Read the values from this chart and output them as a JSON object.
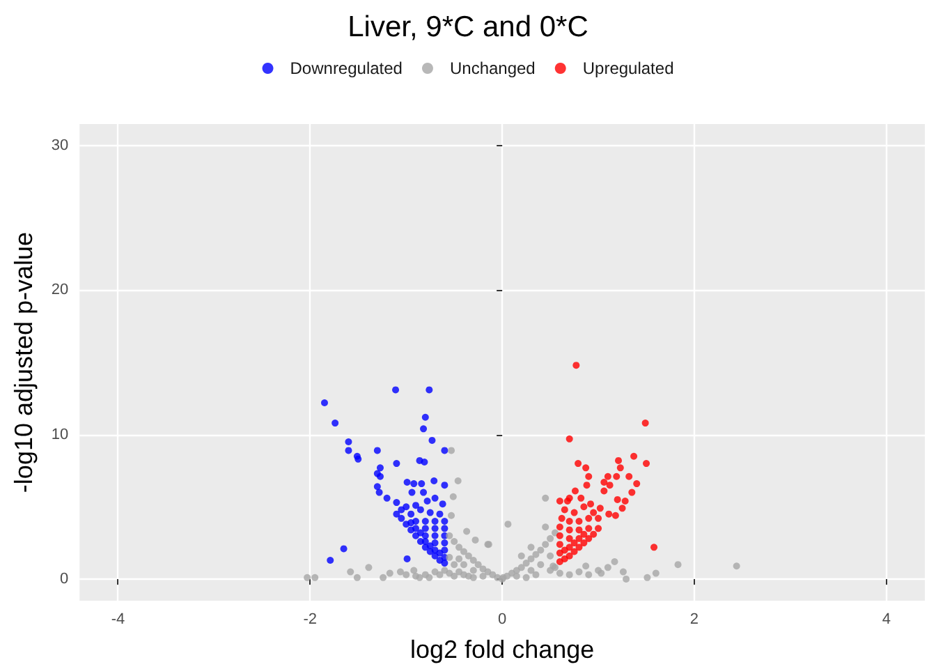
{
  "chart_data": {
    "type": "scatter",
    "title": "Liver, 9*C and 0*C",
    "xlabel": "log2 fold change",
    "ylabel": "-log10 adjusted p-value",
    "xlim": [
      -4.4,
      4.4
    ],
    "xticks": [
      -4,
      -2,
      0,
      2,
      4
    ],
    "ylim": [
      -1.5,
      31.5
    ],
    "yticks": [
      0,
      10,
      20,
      30
    ],
    "grid": true,
    "legend": "top",
    "marker": "circle",
    "series": [
      {
        "name": "Downregulated",
        "color": "#0000ff",
        "x": [
          -1.11,
          -0.76,
          -1.85,
          -1.74,
          -0.8,
          -0.82,
          -1.6,
          -1.6,
          -1.51,
          -1.5,
          -1.3,
          -0.73,
          -0.6,
          -1.1,
          -0.86,
          -0.81,
          -1.27,
          -1.3,
          -1.27,
          -1.3,
          -1.28,
          -1.2,
          -1.1,
          -0.99,
          -0.92,
          -0.84,
          -0.71,
          -0.6,
          -0.94,
          -0.82,
          -0.7,
          -1.1,
          -1.65,
          -1.79,
          -0.99,
          -1.05,
          -1.0,
          -0.95,
          -0.9,
          -0.85,
          -0.8,
          -0.75,
          -0.7,
          -0.65,
          -0.6,
          -0.6,
          -0.6,
          -0.6,
          -0.6,
          -0.6,
          -0.6,
          -0.65,
          -0.7,
          -0.7,
          -0.7,
          -0.7,
          -0.7,
          -0.75,
          -0.8,
          -0.8,
          -0.8,
          -0.8,
          -0.85,
          -0.9,
          -0.9,
          -0.95,
          -1.0,
          -0.65,
          -0.75,
          -0.85,
          -0.95,
          -1.05,
          -0.62,
          -0.78,
          -0.9
        ],
        "values": [
          13.1,
          13.1,
          12.2,
          10.8,
          11.2,
          10.4,
          9.5,
          8.9,
          8.5,
          8.3,
          8.9,
          9.6,
          8.9,
          8.0,
          8.2,
          8.1,
          7.7,
          7.3,
          7.1,
          6.4,
          6.0,
          5.6,
          5.3,
          6.7,
          6.6,
          6.6,
          6.8,
          6.5,
          6.0,
          6.0,
          5.6,
          4.5,
          2.1,
          1.3,
          1.4,
          4.2,
          3.8,
          3.4,
          3.0,
          2.6,
          2.2,
          1.9,
          1.6,
          1.3,
          1.1,
          1.5,
          2.0,
          2.5,
          3.0,
          3.5,
          4.0,
          4.5,
          2.0,
          2.5,
          3.0,
          3.5,
          4.0,
          4.6,
          2.6,
          3.0,
          3.5,
          4.0,
          4.8,
          3.5,
          4.0,
          4.5,
          5.0,
          1.8,
          2.3,
          3.2,
          3.9,
          4.8,
          5.2,
          5.4,
          5.1
        ]
      },
      {
        "name": "Unchanged",
        "color": "#a6a6a6",
        "x": [
          -2.03,
          -1.95,
          -1.58,
          -1.51,
          -1.39,
          -1.24,
          -1.17,
          -1.06,
          -0.92,
          -0.86,
          -0.76,
          -0.53,
          -0.46,
          -0.51,
          -0.53,
          0.06,
          -0.15,
          -0.37,
          -0.28,
          -0.55,
          -0.5,
          -0.45,
          -0.4,
          -0.35,
          -0.3,
          -0.25,
          -0.2,
          -0.15,
          -0.1,
          -0.05,
          0,
          -0.55,
          -0.5,
          -0.45,
          -0.4,
          -0.35,
          -0.3,
          -0.55,
          -0.6,
          -0.5,
          -0.45,
          -0.4,
          -0.3,
          -0.2,
          -0.65,
          -0.7,
          -0.8,
          -0.9,
          -1.0,
          0.45,
          -0.14,
          1.83,
          2.44,
          1.6,
          1.51,
          1.26,
          1.29,
          1.17,
          1.03,
          0.87,
          0.53,
          0.25,
          0.01,
          0.05,
          0.1,
          0.15,
          0.2,
          0.25,
          0.3,
          0.35,
          0.4,
          0.45,
          0.5,
          0.55,
          0.5,
          0.4,
          0.3,
          0.5,
          0.6,
          0.7,
          0.8,
          0.9,
          1.0,
          1.1,
          0.45,
          0.3,
          0.2,
          0.15,
          0.35,
          0.55
        ],
        "values": [
          0.1,
          0.1,
          0.5,
          0.1,
          0.8,
          0.1,
          0.4,
          0.5,
          0.6,
          0.1,
          0.1,
          8.9,
          6.8,
          5.7,
          4.4,
          3.8,
          2.4,
          3.3,
          2.7,
          3.0,
          2.6,
          2.2,
          1.9,
          1.6,
          1.3,
          1.0,
          0.7,
          0.5,
          0.3,
          0.1,
          0.0,
          1.5,
          1.0,
          0.5,
          0.3,
          0.2,
          0.1,
          0.4,
          0.6,
          0.2,
          1.4,
          1.0,
          0.6,
          0.2,
          0.3,
          0.5,
          0.3,
          0.2,
          0.3,
          5.6,
          2.4,
          1.0,
          0.9,
          0.4,
          0.1,
          0.5,
          0.0,
          1.2,
          0.4,
          0.9,
          0.9,
          0.1,
          0.1,
          0.2,
          0.4,
          0.6,
          0.8,
          1.1,
          1.4,
          1.7,
          2.0,
          2.4,
          2.8,
          3.2,
          1.6,
          1.0,
          0.6,
          0.6,
          0.4,
          0.3,
          0.5,
          0.3,
          0.6,
          0.8,
          3.6,
          2.2,
          1.6,
          0.2,
          0.3,
          0.8
        ]
      },
      {
        "name": "Upregulated",
        "color": "#ff0000",
        "x": [
          0.77,
          1.49,
          0.7,
          1.5,
          1.37,
          1.21,
          1.23,
          0.79,
          0.87,
          0.9,
          1.1,
          1.19,
          1.32,
          1.06,
          1.12,
          0.88,
          1.4,
          0.76,
          1.06,
          1.35,
          1.2,
          1.28,
          1.25,
          0.6,
          0.7,
          1.11,
          1.18,
          1.58,
          0.6,
          0.65,
          0.7,
          0.75,
          0.8,
          0.85,
          0.9,
          0.95,
          1.0,
          0.6,
          0.6,
          0.6,
          0.6,
          0.62,
          0.65,
          0.7,
          0.7,
          0.7,
          0.7,
          0.75,
          0.8,
          0.8,
          0.8,
          0.85,
          0.9,
          0.9,
          0.95,
          1.0,
          0.65,
          0.75,
          0.85,
          0.68,
          0.82,
          0.92,
          1.02
        ],
        "values": [
          14.8,
          10.8,
          9.7,
          8.0,
          8.5,
          8.2,
          7.7,
          8.0,
          7.7,
          7.1,
          7.1,
          7.1,
          7.1,
          6.7,
          6.5,
          6.5,
          6.6,
          6.1,
          6.1,
          6.0,
          5.5,
          5.4,
          4.9,
          5.4,
          5.6,
          4.5,
          4.4,
          2.2,
          1.2,
          1.4,
          1.6,
          1.9,
          2.2,
          2.5,
          2.8,
          3.1,
          3.5,
          1.8,
          2.4,
          3.0,
          3.6,
          4.2,
          4.8,
          2.2,
          2.8,
          3.4,
          4.0,
          4.6,
          2.8,
          3.4,
          4.0,
          5.0,
          3.5,
          4.2,
          4.6,
          4.2,
          2.0,
          2.5,
          3.1,
          5.4,
          5.6,
          5.2,
          4.9
        ]
      }
    ]
  }
}
